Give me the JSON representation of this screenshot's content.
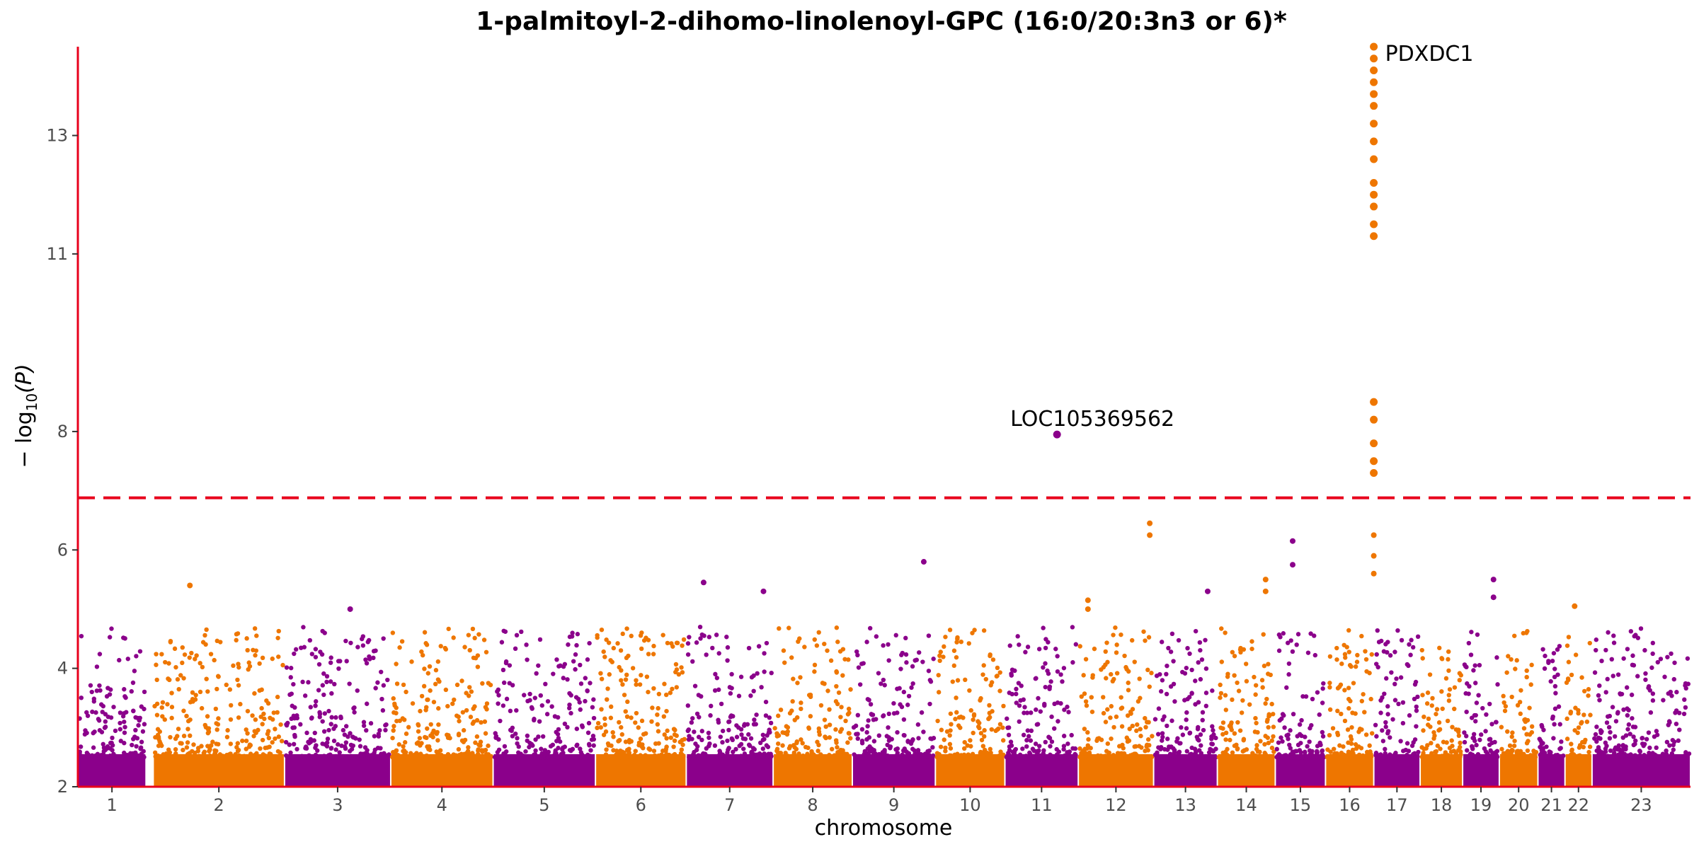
{
  "chart_data": {
    "type": "scatter",
    "subtype": "manhattan",
    "title": "1-palmitoyl-2-dihomo-linolenoyl-GPC (16:0/20:3n3 or 6)*",
    "xlabel": "chromosome",
    "ylabel": {
      "prefix": "− log",
      "sub": "10",
      "suffix": "(P)"
    },
    "ylim": [
      2,
      14.5
    ],
    "yticks": [
      2,
      4,
      6,
      8,
      11,
      13
    ],
    "significance_threshold": 6.88,
    "threshold_color": "#e8001c",
    "axis_color": "#e8001c",
    "series_colors": [
      "#8b008b",
      "#ee7600"
    ],
    "grid": false,
    "legend": "none",
    "chromosomes": [
      {
        "label": "1",
        "span": [
          0.0,
          3.53
        ]
      },
      {
        "label": "2",
        "span": [
          3.9,
          10.7
        ]
      },
      {
        "label": "3",
        "span": [
          10.7,
          16.2
        ]
      },
      {
        "label": "4",
        "span": [
          16.2,
          21.5
        ]
      },
      {
        "label": "5",
        "span": [
          21.5,
          26.8
        ]
      },
      {
        "label": "6",
        "span": [
          26.8,
          31.5
        ]
      },
      {
        "label": "7",
        "span": [
          31.5,
          36.0
        ]
      },
      {
        "label": "8",
        "span": [
          36.0,
          40.1
        ]
      },
      {
        "label": "9",
        "span": [
          40.1,
          44.4
        ]
      },
      {
        "label": "10",
        "span": [
          44.4,
          48.0
        ]
      },
      {
        "label": "11",
        "span": [
          48.0,
          51.8
        ]
      },
      {
        "label": "12",
        "span": [
          51.8,
          55.7
        ]
      },
      {
        "label": "13",
        "span": [
          55.7,
          59.0
        ]
      },
      {
        "label": "14",
        "span": [
          59.0,
          62.0
        ]
      },
      {
        "label": "15",
        "span": [
          62.0,
          64.6
        ]
      },
      {
        "label": "16",
        "span": [
          64.6,
          67.1
        ]
      },
      {
        "label": "17",
        "span": [
          67.1,
          69.5
        ]
      },
      {
        "label": "18",
        "span": [
          69.5,
          71.7
        ]
      },
      {
        "label": "19",
        "span": [
          71.7,
          73.6
        ]
      },
      {
        "label": "20",
        "span": [
          73.6,
          75.6
        ]
      },
      {
        "label": "21",
        "span": [
          75.6,
          77.0
        ]
      },
      {
        "label": "22",
        "span": [
          77.0,
          78.4
        ]
      },
      {
        "label": "23",
        "span": [
          78.4,
          83.5
        ]
      }
    ],
    "highlight_points": [
      {
        "chrom": "11",
        "x": 50.7,
        "y": 7.95
      },
      {
        "chrom": "16",
        "x": 67.1,
        "y": 7.3
      },
      {
        "chrom": "16",
        "x": 67.1,
        "y": 7.5
      },
      {
        "chrom": "16",
        "x": 67.1,
        "y": 7.8
      },
      {
        "chrom": "16",
        "x": 67.1,
        "y": 8.2
      },
      {
        "chrom": "16",
        "x": 67.1,
        "y": 8.5
      },
      {
        "chrom": "16",
        "x": 67.1,
        "y": 11.3
      },
      {
        "chrom": "16",
        "x": 67.1,
        "y": 11.5
      },
      {
        "chrom": "16",
        "x": 67.1,
        "y": 11.8
      },
      {
        "chrom": "16",
        "x": 67.1,
        "y": 12.0
      },
      {
        "chrom": "16",
        "x": 67.1,
        "y": 12.2
      },
      {
        "chrom": "16",
        "x": 67.1,
        "y": 12.6
      },
      {
        "chrom": "16",
        "x": 67.1,
        "y": 12.9
      },
      {
        "chrom": "16",
        "x": 67.1,
        "y": 13.2
      },
      {
        "chrom": "16",
        "x": 67.1,
        "y": 13.5
      },
      {
        "chrom": "16",
        "x": 67.1,
        "y": 13.7
      },
      {
        "chrom": "16",
        "x": 67.1,
        "y": 13.9
      },
      {
        "chrom": "16",
        "x": 67.1,
        "y": 14.1
      },
      {
        "chrom": "16",
        "x": 67.1,
        "y": 14.3
      },
      {
        "chrom": "16",
        "x": 67.1,
        "y": 14.5
      }
    ],
    "notable_points": [
      {
        "chrom": "2",
        "x": 5.8,
        "y": 5.4
      },
      {
        "chrom": "7",
        "x": 32.4,
        "y": 5.45
      },
      {
        "chrom": "7",
        "x": 35.5,
        "y": 5.3
      },
      {
        "chrom": "9",
        "x": 43.8,
        "y": 5.8
      },
      {
        "chrom": "12",
        "x": 55.5,
        "y": 6.45
      },
      {
        "chrom": "12",
        "x": 55.5,
        "y": 6.25
      },
      {
        "chrom": "12",
        "x": 52.3,
        "y": 5.15
      },
      {
        "chrom": "12",
        "x": 52.3,
        "y": 5.0
      },
      {
        "chrom": "14",
        "x": 61.5,
        "y": 5.5
      },
      {
        "chrom": "14",
        "x": 61.5,
        "y": 5.3
      },
      {
        "chrom": "15",
        "x": 62.9,
        "y": 6.15
      },
      {
        "chrom": "15",
        "x": 62.9,
        "y": 5.75
      },
      {
        "chrom": "16",
        "x": 67.1,
        "y": 6.25
      },
      {
        "chrom": "16",
        "x": 67.1,
        "y": 5.9
      },
      {
        "chrom": "16",
        "x": 67.1,
        "y": 5.6
      },
      {
        "chrom": "19",
        "x": 73.3,
        "y": 5.5
      },
      {
        "chrom": "19",
        "x": 73.3,
        "y": 5.2
      },
      {
        "chrom": "22",
        "x": 77.5,
        "y": 5.05
      },
      {
        "chrom": "3",
        "x": 14.1,
        "y": 5.0
      },
      {
        "chrom": "13",
        "x": 58.5,
        "y": 5.3
      }
    ],
    "annotations": [
      {
        "text": "PDXDC1",
        "x": 67.1,
        "y": 14.5
      },
      {
        "text": "LOC105369562",
        "x": 50.7,
        "y": 7.95
      }
    ]
  }
}
